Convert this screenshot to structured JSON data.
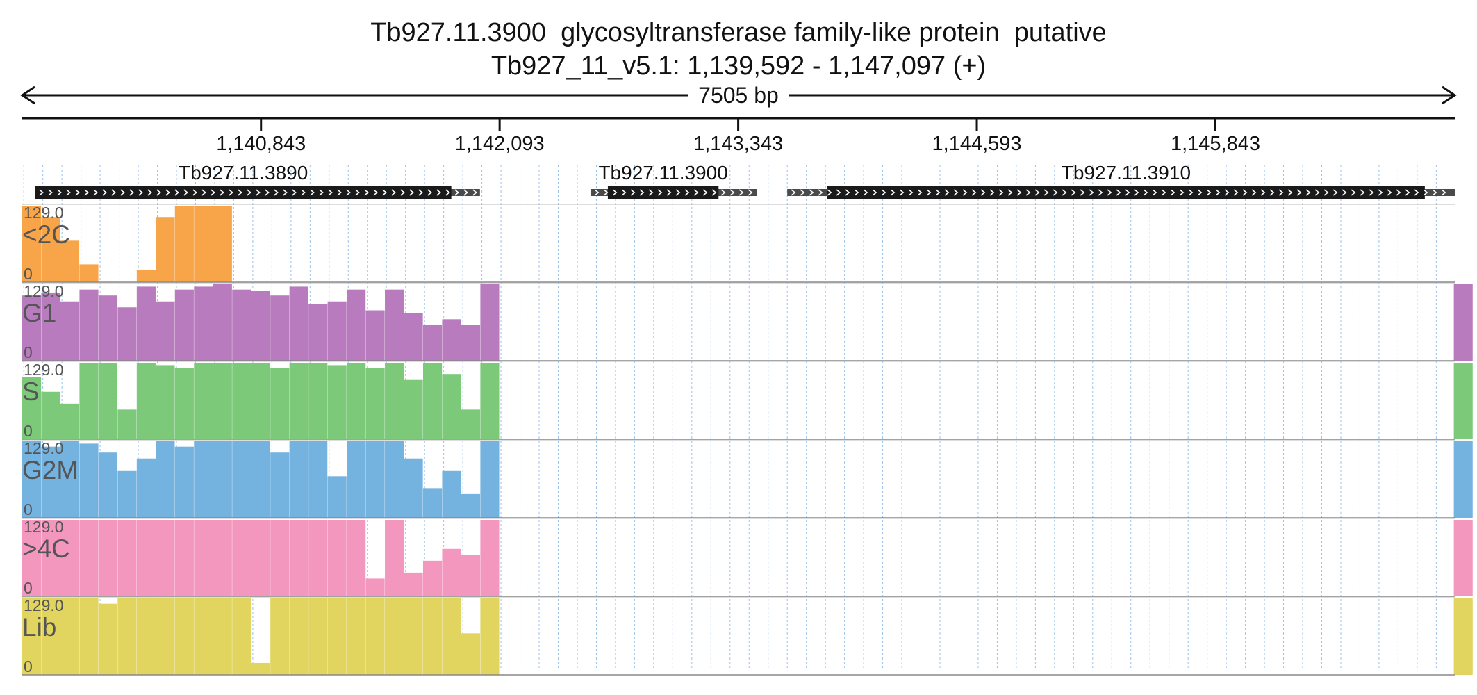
{
  "chart_data": {
    "type": "area",
    "title": "Tb927.11.3900  glycosyltransferase family-like protein  putative",
    "subtitle": "Tb927_11_v5.1: 1,139,592 - 1,147,097 (+)",
    "span_label": "7505 bp",
    "region": {
      "start": 1139592,
      "end": 1147097
    },
    "x_ticks": [
      {
        "pos": 1140843,
        "label": "1,140,843"
      },
      {
        "pos": 1142093,
        "label": "1,142,093"
      },
      {
        "pos": 1143343,
        "label": "1,143,343"
      },
      {
        "pos": 1144593,
        "label": "1,144,593"
      },
      {
        "pos": 1145843,
        "label": "1,145,843"
      }
    ],
    "genes": [
      {
        "name": "Tb927.11.3890",
        "start": 1139660,
        "end": 1141990,
        "cds_start": 1139660,
        "cds_end": 1141840,
        "strand": "+"
      },
      {
        "name": "Tb927.11.3900",
        "start": 1142570,
        "end": 1143440,
        "cds_start": 1142660,
        "cds_end": 1143240,
        "strand": "+"
      },
      {
        "name": "Tb927.11.3910",
        "start": 1143600,
        "end": 1147097,
        "cds_start": 1143810,
        "cds_end": 1146940,
        "strand": "+"
      }
    ],
    "ylim": [
      0,
      129
    ],
    "scale_max_label": "129.0",
    "scale_min_label": "0",
    "x": [
      1139592,
      1139692,
      1139792,
      1139892,
      1139992,
      1140092,
      1140192,
      1140292,
      1140392,
      1140492,
      1140592,
      1140692,
      1140792,
      1140892,
      1140992,
      1141092,
      1141192,
      1141292,
      1141392,
      1141492,
      1141592,
      1141692,
      1141792,
      1141892,
      1141992,
      1142092,
      1142192,
      1142292,
      1142392,
      1142492,
      1142592,
      1142692,
      1142792,
      1142892,
      1142992,
      1143092,
      1143192,
      1143292,
      1143392,
      1143492,
      1143592,
      1143692,
      1143792,
      1143892,
      1143992,
      1144092,
      1144192,
      1144292,
      1144392,
      1144492,
      1144592,
      1144692,
      1144792,
      1144892,
      1144992,
      1145092,
      1145192,
      1145292,
      1145392,
      1145492,
      1145592,
      1145692,
      1145792,
      1145892,
      1145992,
      1146092,
      1146192,
      1146292,
      1146392,
      1146492,
      1146592,
      1146692,
      1146792,
      1146892,
      1146992,
      1147092
    ],
    "series": [
      {
        "name": "<2C",
        "color": "#F8A54A",
        "values": [
          129,
          110,
          70,
          30,
          0,
          0,
          20,
          110,
          129,
          129,
          129,
          0,
          0,
          0,
          0,
          0,
          0,
          0,
          0,
          0,
          0,
          0,
          0,
          0,
          0,
          0,
          0,
          0,
          0,
          0,
          0,
          0,
          0,
          0,
          0,
          0,
          0,
          0,
          0,
          0,
          0,
          0,
          0,
          0,
          0,
          0,
          0,
          0,
          0,
          0,
          0,
          0,
          0,
          0,
          0,
          0,
          0,
          0,
          0,
          0,
          0,
          0,
          0,
          0,
          0,
          0,
          0,
          0,
          0,
          0,
          0,
          0,
          0,
          0,
          0,
          0
        ]
      },
      {
        "name": "G1",
        "color": "#B87BBE",
        "values": [
          110,
          115,
          100,
          120,
          110,
          90,
          125,
          100,
          120,
          125,
          129,
          120,
          118,
          110,
          125,
          95,
          100,
          120,
          85,
          120,
          80,
          60,
          70,
          60,
          129,
          0,
          0,
          0,
          0,
          0,
          0,
          0,
          0,
          0,
          0,
          0,
          0,
          0,
          0,
          0,
          0,
          0,
          0,
          0,
          0,
          0,
          0,
          0,
          0,
          0,
          0,
          0,
          0,
          0,
          0,
          0,
          0,
          0,
          0,
          0,
          0,
          0,
          0,
          0,
          0,
          0,
          0,
          0,
          0,
          0,
          0,
          0,
          0,
          0,
          0,
          129
        ]
      },
      {
        "name": "S",
        "color": "#7CC97A",
        "values": [
          105,
          80,
          60,
          129,
          129,
          50,
          129,
          125,
          120,
          129,
          129,
          129,
          129,
          120,
          129,
          129,
          125,
          129,
          120,
          129,
          100,
          129,
          110,
          50,
          129,
          0,
          0,
          0,
          0,
          0,
          0,
          0,
          0,
          0,
          0,
          0,
          0,
          0,
          0,
          0,
          0,
          0,
          0,
          0,
          0,
          0,
          0,
          0,
          0,
          0,
          0,
          0,
          0,
          0,
          0,
          0,
          0,
          0,
          0,
          0,
          0,
          0,
          0,
          0,
          0,
          0,
          0,
          0,
          0,
          0,
          0,
          0,
          0,
          0,
          0,
          129
        ]
      },
      {
        "name": "G2M",
        "color": "#74B2E0",
        "values": [
          129,
          120,
          129,
          125,
          110,
          80,
          100,
          129,
          120,
          129,
          129,
          129,
          129,
          110,
          129,
          129,
          70,
          129,
          129,
          129,
          100,
          50,
          80,
          40,
          129,
          0,
          0,
          0,
          0,
          0,
          0,
          0,
          0,
          0,
          0,
          0,
          0,
          0,
          0,
          0,
          0,
          0,
          0,
          0,
          0,
          0,
          0,
          0,
          0,
          0,
          0,
          0,
          0,
          0,
          0,
          0,
          0,
          0,
          0,
          0,
          0,
          0,
          0,
          0,
          0,
          0,
          0,
          0,
          0,
          0,
          0,
          0,
          0,
          0,
          0,
          129
        ]
      },
      {
        "name": ">4C",
        "color": "#F497BF",
        "values": [
          129,
          129,
          129,
          129,
          129,
          129,
          129,
          129,
          129,
          129,
          129,
          129,
          129,
          129,
          129,
          129,
          129,
          129,
          30,
          129,
          40,
          60,
          80,
          70,
          129,
          0,
          0,
          0,
          0,
          0,
          0,
          0,
          0,
          0,
          0,
          0,
          0,
          0,
          0,
          0,
          0,
          0,
          0,
          0,
          0,
          0,
          0,
          0,
          0,
          0,
          0,
          0,
          0,
          0,
          0,
          0,
          0,
          0,
          0,
          0,
          0,
          0,
          0,
          0,
          0,
          0,
          0,
          0,
          0,
          0,
          0,
          0,
          0,
          0,
          0,
          129
        ]
      },
      {
        "name": "Lib",
        "color": "#E1D45F",
        "values": [
          129,
          129,
          129,
          129,
          120,
          129,
          129,
          129,
          129,
          129,
          129,
          129,
          20,
          129,
          129,
          129,
          129,
          129,
          129,
          129,
          129,
          129,
          129,
          70,
          129,
          0,
          0,
          0,
          0,
          0,
          0,
          0,
          0,
          0,
          0,
          0,
          0,
          0,
          0,
          0,
          0,
          0,
          0,
          0,
          0,
          0,
          0,
          0,
          0,
          0,
          0,
          0,
          0,
          0,
          0,
          0,
          0,
          0,
          0,
          0,
          0,
          0,
          0,
          0,
          0,
          0,
          0,
          0,
          0,
          0,
          0,
          0,
          0,
          0,
          0,
          129
        ]
      }
    ],
    "grid": true,
    "legend": "none"
  }
}
